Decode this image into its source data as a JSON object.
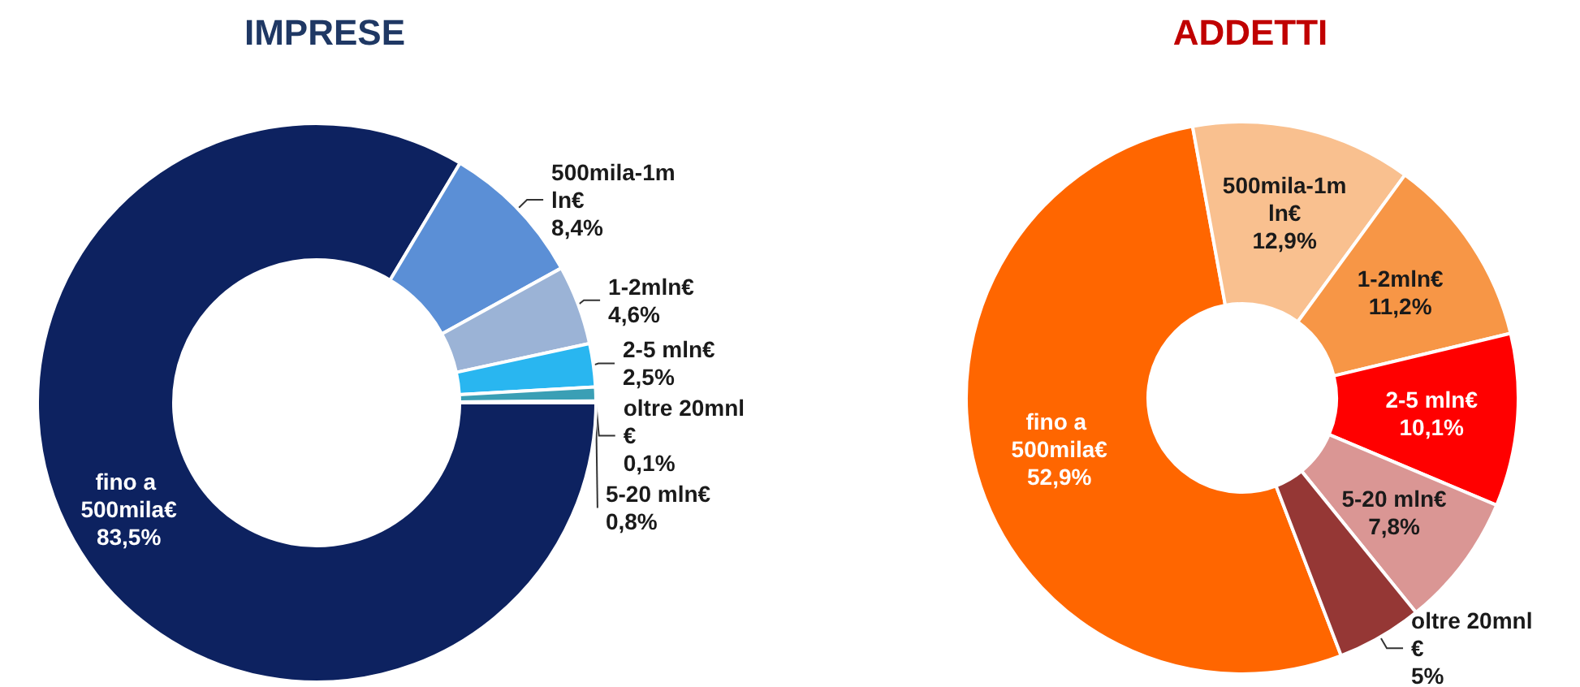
{
  "chart_data": [
    {
      "type": "donut",
      "title": "IMPRESE",
      "categories": [
        "fino a 500mila€",
        "500mila-1mln€",
        "1-2mln€",
        "2-5 mln€",
        "5-20 mln€",
        "oltre 20mnl€"
      ],
      "values": [
        83.5,
        8.4,
        4.6,
        2.5,
        0.8,
        0.1
      ],
      "value_labels": [
        "83,5%",
        "8,4%",
        "4,6%",
        "2,5%",
        "0,8%",
        "0,1%"
      ],
      "colors": [
        "#0d2260",
        "#5b8fd6",
        "#9bb3d6",
        "#29b6f0",
        "#3a9fb5",
        "#1b4f7a"
      ]
    },
    {
      "type": "donut",
      "title": "ADDETTI",
      "categories": [
        "fino a 500mila€",
        "500mila-1mln€",
        "1-2mln€",
        "2-5 mln€",
        "5-20 mln€",
        "oltre 20mnl€"
      ],
      "values": [
        52.9,
        12.9,
        11.2,
        10.1,
        7.8,
        5
      ],
      "value_labels": [
        "52,9%",
        "12,9%",
        "11,2%",
        "10,1%",
        "7,8%",
        "5%"
      ],
      "colors": [
        "#ff6600",
        "#f9c08f",
        "#f79646",
        "#ff0000",
        "#da9694",
        "#953735"
      ]
    }
  ]
}
